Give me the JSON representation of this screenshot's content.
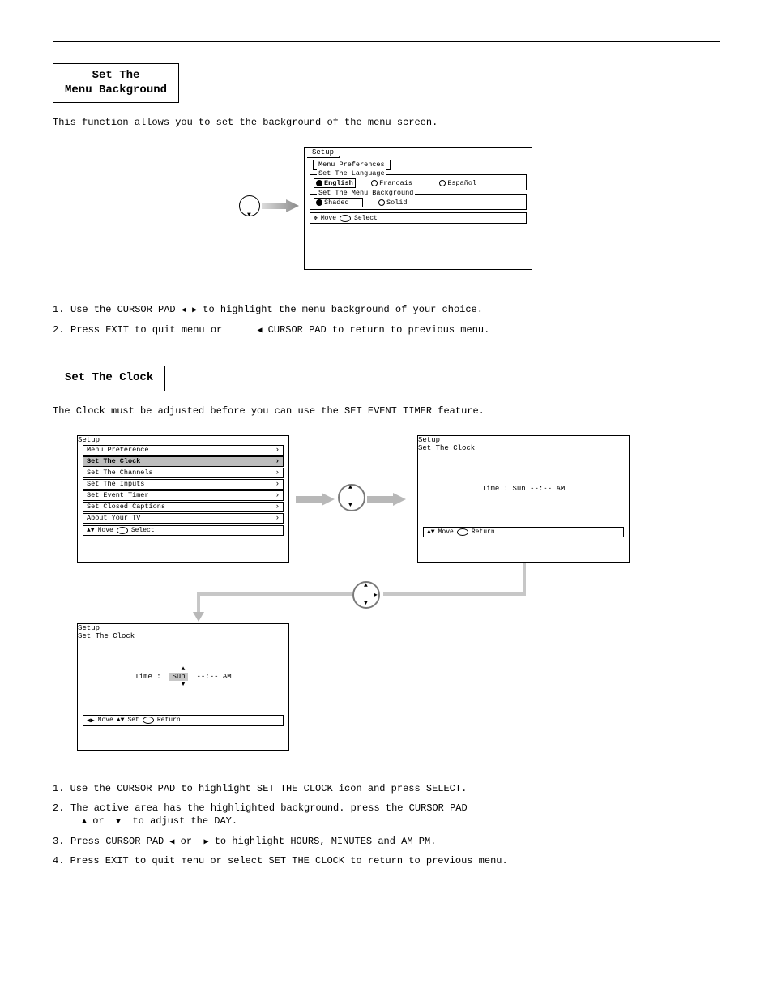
{
  "rule_color": "#000000",
  "section1": {
    "title_line1": "Set The",
    "title_line2": "Menu Background",
    "intro": "This function allows you to set the background of the menu screen.",
    "osd": {
      "tab": "Setup",
      "subtab": "Menu Preferences",
      "group1_legend": "Set The Language",
      "lang1": "English",
      "lang2": "Francais",
      "lang3": "Español",
      "group2_legend": "Set The Menu Background",
      "bg1": "Shaded",
      "bg2": "Solid",
      "hint_move": "Move",
      "hint_select": "Select"
    },
    "step1": "1.  Use the CURSOR PAD      to highlight the menu background of your choice.",
    "step2": "2.  Press EXIT to quit menu or        CURSOR PAD to return to previous menu."
  },
  "section2": {
    "title": "Set The Clock",
    "intro": "The Clock must be adjusted before you can use the SET EVENT TIMER feature.",
    "panelA": {
      "tab": "Setup",
      "sub": "Menu Preference",
      "rows": [
        "Menu Preference",
        "Set The Clock",
        "Set The Channels",
        "Set The Inputs",
        "Set Event Timer",
        "Set Closed Captions",
        "About Your TV"
      ],
      "highlight_index": 1,
      "hint_move": "Move",
      "hint_select": "Select"
    },
    "panelB": {
      "tab": "Setup",
      "sub": "Set The Clock",
      "timeline": "Time :  Sun  --:--  AM",
      "hint_move": "Move",
      "hint_return": "Return"
    },
    "panelC": {
      "tab": "Setup",
      "sub": "Set The Clock",
      "time_prefix": "Time :",
      "day": "Sun",
      "rest": "--:--  AM",
      "hint_move": "Move",
      "hint_set": "Set",
      "hint_return": "Return"
    },
    "step1": "1.  Use the CURSOR PAD to highlight SET THE CLOCK icon and press SELECT.",
    "step2": "2.  The active area has the highlighted background. press the CURSOR PAD",
    "step2b": "     or     to adjust the DAY.",
    "step3": "3.  Press CURSOR PAD     or     to highlight HOURS, MINUTES and AM PM.",
    "step4": "4.  Press EXIT to quit menu or select SET THE CLOCK to return to previous menu."
  }
}
